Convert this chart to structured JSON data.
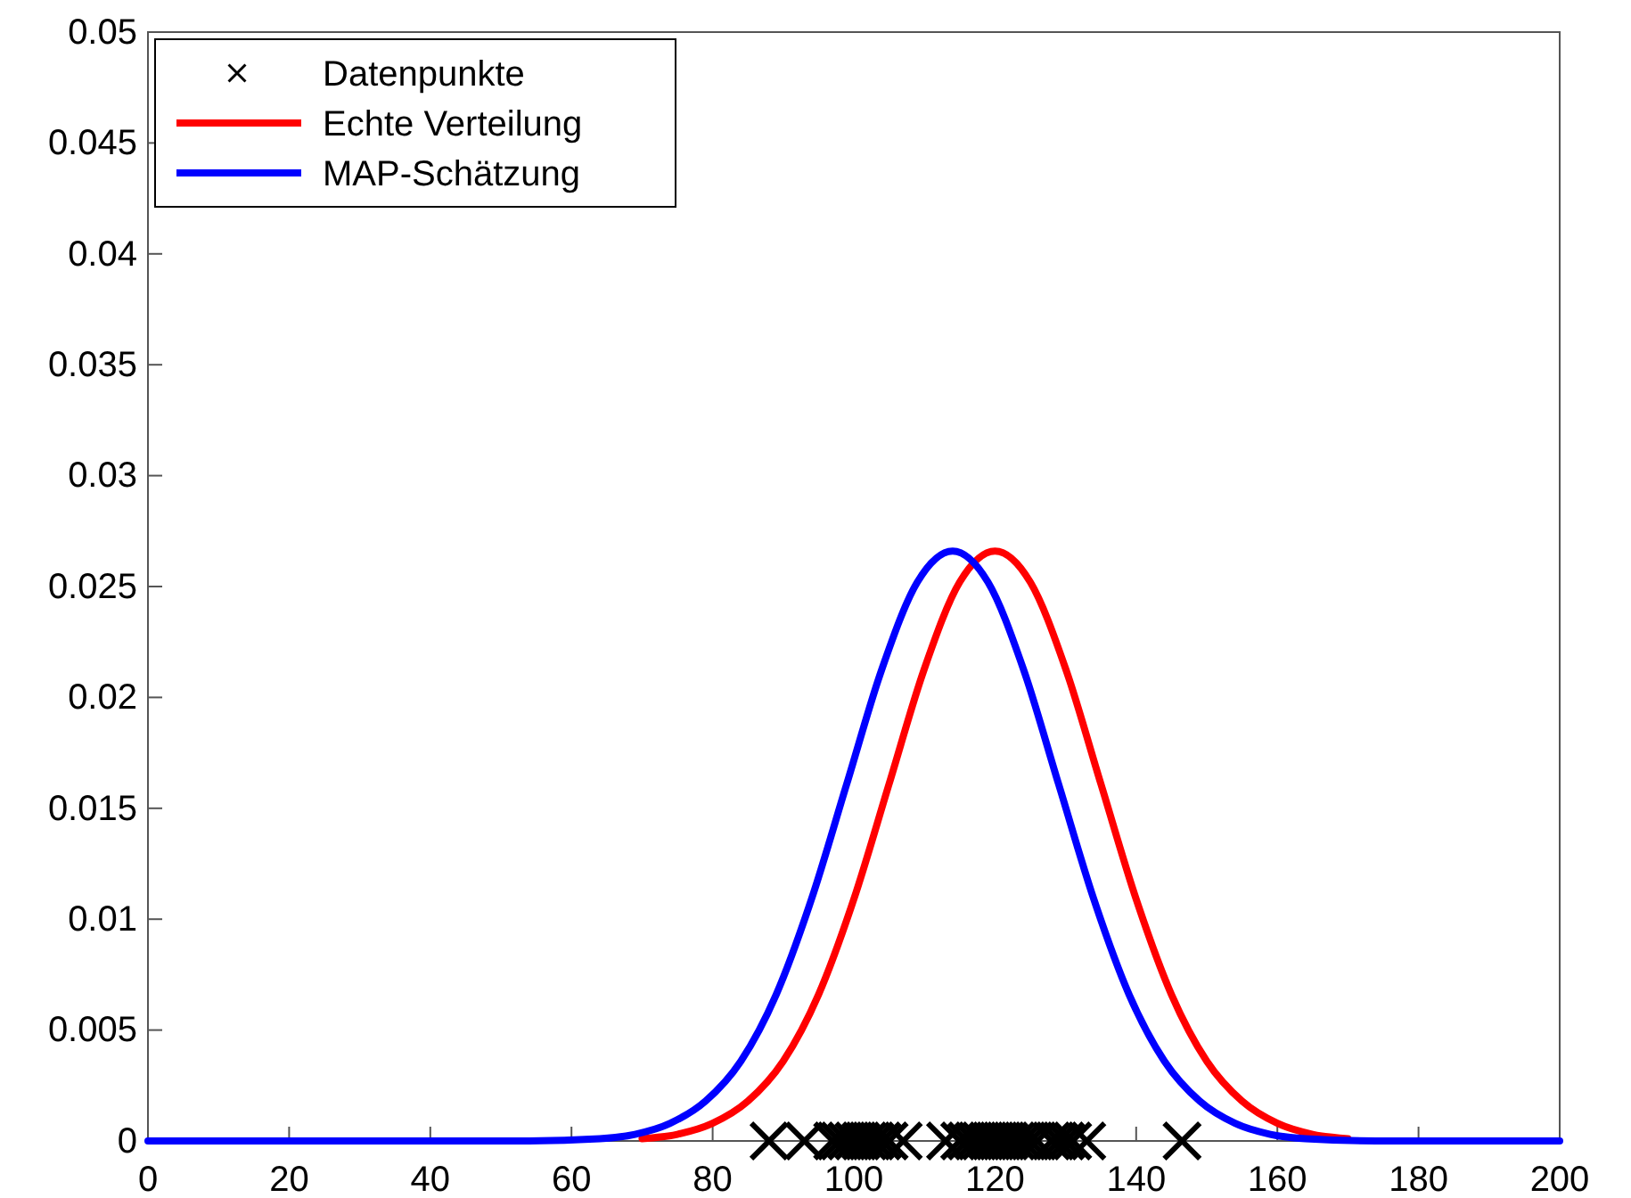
{
  "chart_data": {
    "type": "line",
    "xlim": [
      0,
      200
    ],
    "xticks": [
      0,
      20,
      40,
      60,
      80,
      100,
      120,
      140,
      160,
      180,
      200
    ],
    "ylim": [
      0,
      0.05
    ],
    "yticks": [
      0,
      0.005,
      0.01,
      0.015,
      0.02,
      0.025,
      0.03,
      0.035,
      0.04,
      0.045,
      0.05
    ],
    "legend": "top left",
    "grid": false,
    "series": [
      {
        "name": "Datenpunkte",
        "type": "scatter",
        "marker": "cross",
        "color": "#000000",
        "x": [
          88,
          93,
          97,
          98,
          99,
          100,
          101,
          102,
          103,
          104,
          105,
          107,
          113,
          115,
          116,
          117,
          118,
          119,
          120,
          121,
          122,
          123,
          124,
          125,
          126,
          128,
          129,
          130,
          131,
          133,
          146.5
        ],
        "values": [
          0,
          0,
          0,
          0,
          0,
          0,
          0,
          0,
          0,
          0,
          0,
          0,
          0,
          0,
          0,
          0,
          0,
          0,
          0,
          0,
          0,
          0,
          0,
          0,
          0,
          0,
          0,
          0,
          0,
          0,
          0
        ]
      },
      {
        "name": "Echte Verteilung",
        "color": "#ff0000",
        "x": [
          70,
          75,
          80,
          85,
          90,
          95,
          100,
          105,
          110,
          115,
          120,
          125,
          130,
          135,
          140,
          145,
          150,
          155,
          160,
          165,
          170
        ],
        "values": [
          0.0001,
          0.0003,
          0.0008,
          0.0018,
          0.0036,
          0.0066,
          0.0109,
          0.0161,
          0.0213,
          0.0252,
          0.0266,
          0.0252,
          0.0213,
          0.0161,
          0.0109,
          0.0066,
          0.0036,
          0.0018,
          0.0008,
          0.0003,
          0.0001
        ]
      },
      {
        "name": "MAP-Schätzung",
        "color": "#0000ff",
        "x": [
          0,
          20,
          40,
          54,
          64,
          69,
          74,
          79,
          84,
          89,
          94,
          99,
          104,
          109,
          114,
          119,
          124,
          129,
          134,
          139,
          144,
          149,
          154,
          159,
          164,
          174,
          200
        ],
        "values": [
          0,
          0,
          0,
          0,
          0.0001,
          0.0003,
          0.0008,
          0.0018,
          0.0036,
          0.0066,
          0.0109,
          0.0161,
          0.0213,
          0.0252,
          0.0266,
          0.0252,
          0.0213,
          0.0161,
          0.0109,
          0.0066,
          0.0036,
          0.0018,
          0.0008,
          0.0003,
          0.0001,
          0,
          0
        ]
      }
    ]
  }
}
